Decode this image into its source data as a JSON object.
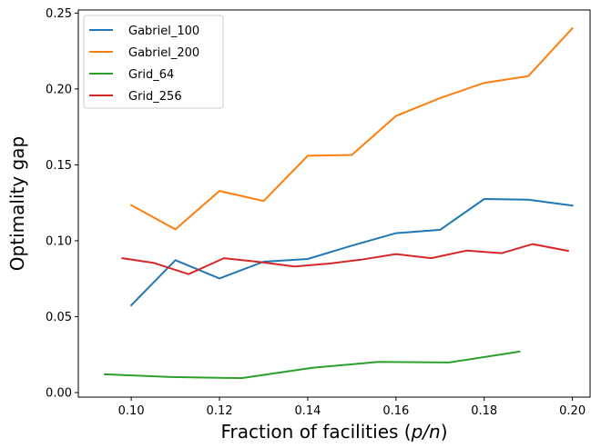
{
  "chart_data": {
    "type": "line",
    "xlabel_prefix": "Fraction of facilities (",
    "xlabel_italic": "p/n",
    "xlabel_suffix": ")",
    "ylabel": "Optimality gap",
    "xlim": [
      0.088,
      0.204
    ],
    "ylim": [
      -0.003,
      0.252
    ],
    "xticks": [
      "0.10",
      "0.12",
      "0.14",
      "0.16",
      "0.18",
      "0.20"
    ],
    "yticks": [
      "0.00",
      "0.05",
      "0.10",
      "0.15",
      "0.20",
      "0.25"
    ],
    "legend_position": "top-left",
    "series": [
      {
        "name": "Gabriel_100",
        "color": "#1f77b4",
        "x": [
          0.1,
          0.11,
          0.12,
          0.13,
          0.14,
          0.15,
          0.16,
          0.17,
          0.18,
          0.19,
          0.2
        ],
        "y": [
          0.0575,
          0.0872,
          0.0752,
          0.0862,
          0.088,
          0.0968,
          0.105,
          0.1072,
          0.1275,
          0.127,
          0.1232
        ]
      },
      {
        "name": "Gabriel_200",
        "color": "#ff7f0e",
        "x": [
          0.1,
          0.11,
          0.12,
          0.13,
          0.14,
          0.15,
          0.16,
          0.17,
          0.18,
          0.19,
          0.2
        ],
        "y": [
          0.1235,
          0.1075,
          0.1328,
          0.1262,
          0.156,
          0.1565,
          0.1822,
          0.194,
          0.204,
          0.2085,
          0.24
        ]
      },
      {
        "name": "Grid_64",
        "color": "#2ca02c",
        "x": [
          0.094,
          0.109,
          0.125,
          0.141,
          0.156,
          0.172,
          0.188
        ],
        "y": [
          0.012,
          0.0102,
          0.0095,
          0.0163,
          0.0202,
          0.0198,
          0.027
        ]
      },
      {
        "name": "Grid_256",
        "color": "#d62728",
        "x": [
          0.098,
          0.105,
          0.113,
          0.121,
          0.129,
          0.137,
          0.145,
          0.152,
          0.16,
          0.168,
          0.176,
          0.184,
          0.191,
          0.199
        ],
        "y": [
          0.0885,
          0.0855,
          0.078,
          0.0885,
          0.086,
          0.083,
          0.085,
          0.0875,
          0.0912,
          0.0885,
          0.0935,
          0.0918,
          0.0978,
          0.0933
        ]
      }
    ]
  }
}
